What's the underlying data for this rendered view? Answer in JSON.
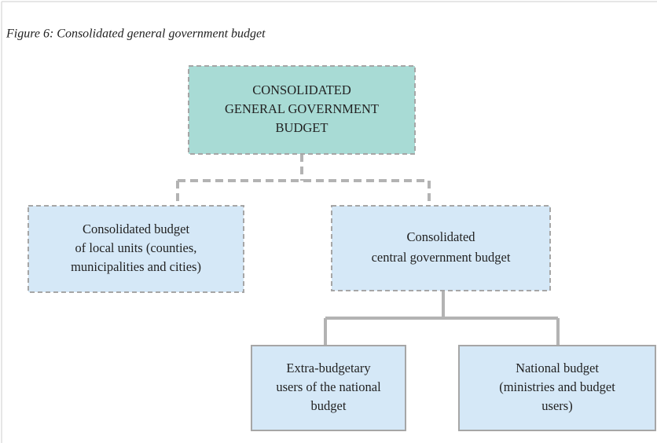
{
  "title": "Figure 6: Consolidated general government budget",
  "nodes": [
    {
      "lines": [
        "CONSOLIDATED",
        "GENERAL GOVERNMENT",
        "BUDGET"
      ]
    },
    {
      "lines": [
        "Consolidated budget",
        "of local units (counties,",
        "municipalities and cities)"
      ]
    },
    {
      "lines": [
        "Consolidated",
        "central government budget"
      ]
    },
    {
      "lines": [
        "Extra-budgetary",
        "users of the national",
        "budget"
      ]
    },
    {
      "lines": [
        "National budget",
        "(ministries and budget",
        "users)"
      ]
    }
  ]
}
